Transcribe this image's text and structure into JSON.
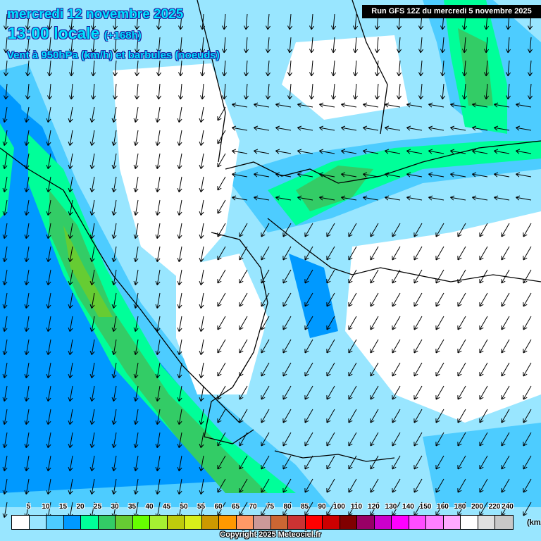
{
  "header": {
    "date": "mercredi 12 novembre 2025",
    "time": "13:00 locale",
    "lead": "(+168h)",
    "parameter": "Vent à 950hPa (km/h) et barbules (noeuds)",
    "run": "Run GFS 12Z du mercredi 5 novembre 2025"
  },
  "legend": {
    "labels": [
      "5",
      "10",
      "15",
      "20",
      "25",
      "30",
      "35",
      "40",
      "45",
      "50",
      "55",
      "60",
      "65",
      "70",
      "75",
      "80",
      "85",
      "90",
      "100",
      "110",
      "120",
      "130",
      "140",
      "150",
      "160",
      "180",
      "200",
      "220",
      "240"
    ],
    "colors": [
      "#ffffff",
      "#99e6ff",
      "#4dccff",
      "#0099ff",
      "#00ff99",
      "#33cc66",
      "#66cc33",
      "#66ff00",
      "#a6f032",
      "#bfcc0c",
      "#d9ef1a",
      "#cc9900",
      "#ff9900",
      "#ff9966",
      "#cc9999",
      "#cc6633",
      "#cc3333",
      "#ff0000",
      "#cc0000",
      "#800000",
      "#990066",
      "#cc00cc",
      "#ff00ff",
      "#ff4dff",
      "#ff80ff",
      "#ffaaff",
      "#ffffff",
      "#e0e0e0",
      "#c8c8c8"
    ],
    "unit": "(km/h)"
  },
  "footer": {
    "copyright": "Copyright 2025 Meteociel.fr"
  }
}
